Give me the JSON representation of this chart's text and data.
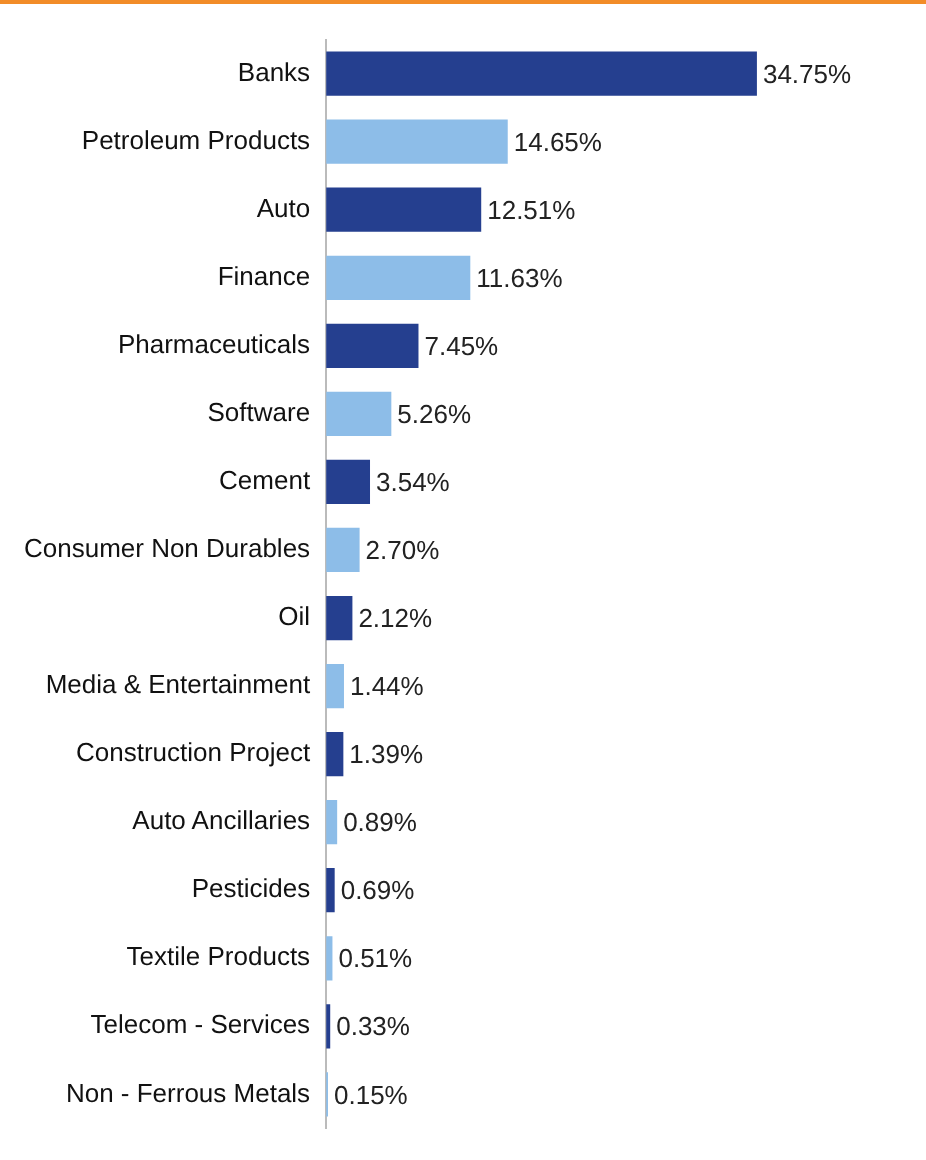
{
  "chart_data": {
    "type": "bar",
    "orientation": "horizontal",
    "legend": false,
    "tick_labels": "y",
    "categories": [
      "Banks",
      "Petroleum Products",
      "Auto",
      "Finance",
      "Pharmaceuticals",
      "Software",
      "Cement",
      "Consumer Non Durables",
      "Oil",
      "Media & Entertainment",
      "Construction Project",
      "Auto Ancillaries",
      "Pesticides",
      "Textile Products",
      "Telecom - Services",
      "Non - Ferrous Metals"
    ],
    "values": [
      34.75,
      14.65,
      12.51,
      11.63,
      7.45,
      5.26,
      3.54,
      2.7,
      2.12,
      1.44,
      1.39,
      0.89,
      0.69,
      0.51,
      0.33,
      0.15
    ],
    "colors": [
      "#253f8f",
      "#8dbde8",
      "#253f8f",
      "#8dbde8",
      "#253f8f",
      "#8dbde8",
      "#253f8f",
      "#8dbde8",
      "#253f8f",
      "#8dbde8",
      "#253f8f",
      "#8dbde8",
      "#253f8f",
      "#8dbde8",
      "#253f8f",
      "#8dbde8"
    ],
    "value_labels": [
      "34.75%",
      "14.65%",
      "12.51%",
      "11.63%",
      "7.45%",
      "5.26%",
      "3.54%",
      "2.70%",
      "2.12%",
      "1.44%",
      "1.39%",
      "0.89%",
      "0.69%",
      "0.51%",
      "0.33%",
      "0.15%"
    ]
  }
}
